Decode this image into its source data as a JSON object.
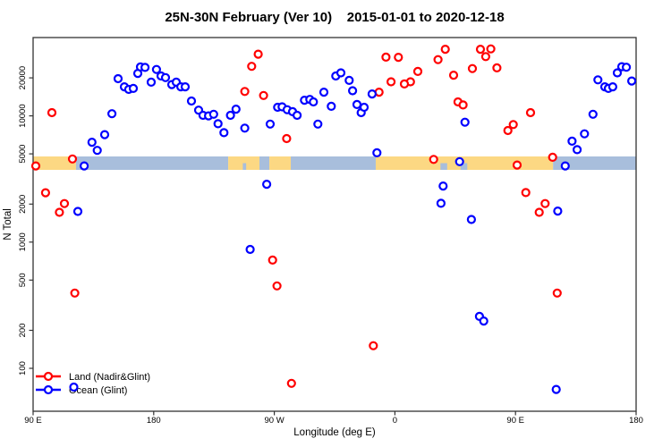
{
  "title": "25N-30N February (Ver 10)    2015-01-01 to 2020-12-18",
  "chart_data": {
    "type": "scatter",
    "title": "25N-30N February (Ver 10)    2015-01-01 to 2020-12-18",
    "xlabel": "Longitude (deg E)",
    "ylabel": "N Total",
    "x_axis": {
      "range": [
        90,
        540
      ],
      "note": "longitude wraps eastward: 90E -> 180 -> 90W -> 0 -> 90E -> 180",
      "ticks": [
        {
          "v": 90,
          "label": "90 E"
        },
        {
          "v": 180,
          "label": "180"
        },
        {
          "v": 270,
          "label": "90 W"
        },
        {
          "v": 360,
          "label": "0"
        },
        {
          "v": 450,
          "label": "90 E"
        },
        {
          "v": 540,
          "label": "180"
        }
      ]
    },
    "y_axis": {
      "scale": "log",
      "ticks": [
        100,
        200,
        500,
        1000,
        2000,
        5000,
        10000,
        20000
      ],
      "range": [
        46,
        41700
      ]
    },
    "series": [
      {
        "name": "Land (Nadir&Glint)",
        "color": "#ff0000",
        "points": [
          [
            104.0,
            10600
          ],
          [
            119.4,
            4560
          ],
          [
            92.0,
            4010
          ],
          [
            99.3,
            2460
          ],
          [
            113.4,
            2020
          ],
          [
            109.6,
            1720
          ],
          [
            121.1,
            395
          ],
          [
            258.0,
            30800
          ],
          [
            253.1,
            24700
          ],
          [
            248.0,
            15600
          ],
          [
            262.0,
            14500
          ],
          [
            279.2,
            6610
          ],
          [
            268.7,
            720
          ],
          [
            272.0,
            450
          ],
          [
            282.8,
            76
          ],
          [
            343.9,
            151
          ],
          [
            353.3,
            29200
          ],
          [
            362.6,
            29100
          ],
          [
            377.1,
            22500
          ],
          [
            371.6,
            18600
          ],
          [
            367.1,
            17900
          ],
          [
            357.1,
            18600
          ],
          [
            348.2,
            15400
          ],
          [
            397.6,
            33700
          ],
          [
            392.2,
            27900
          ],
          [
            403.8,
            21000
          ],
          [
            417.8,
            23700
          ],
          [
            423.8,
            33700
          ],
          [
            427.8,
            29500
          ],
          [
            431.6,
            33900
          ],
          [
            436.1,
            24000
          ],
          [
            407.1,
            12900
          ],
          [
            410.9,
            12200
          ],
          [
            444.3,
            7650
          ],
          [
            448.3,
            8540
          ],
          [
            388.9,
            4520
          ],
          [
            451.2,
            4080
          ],
          [
            461.2,
            10600
          ],
          [
            477.7,
            4700
          ],
          [
            457.7,
            2470
          ],
          [
            472.1,
            2020
          ],
          [
            467.7,
            1720
          ],
          [
            481.1,
            395
          ]
        ]
      },
      {
        "name": "Ocean (Glint)",
        "color": "#0000ff",
        "points": [
          [
            148.8,
            10400
          ],
          [
            153.4,
            19700
          ],
          [
            158.1,
            17000
          ],
          [
            161.4,
            16200
          ],
          [
            164.8,
            16500
          ],
          [
            168.1,
            21700
          ],
          [
            170.1,
            24400
          ],
          [
            173.5,
            24200
          ],
          [
            178.1,
            18500
          ],
          [
            182.1,
            23300
          ],
          [
            185.5,
            20700
          ],
          [
            188.8,
            20100
          ],
          [
            193.5,
            17700
          ],
          [
            196.8,
            18500
          ],
          [
            200.2,
            17000
          ],
          [
            203.5,
            17000
          ],
          [
            208.2,
            13100
          ],
          [
            213.5,
            11100
          ],
          [
            216.8,
            10100
          ],
          [
            220.9,
            10000
          ],
          [
            224.7,
            10300
          ],
          [
            228.0,
            8670
          ],
          [
            232.4,
            7360
          ],
          [
            237.3,
            10100
          ],
          [
            241.4,
            11300
          ],
          [
            248.0,
            8000
          ],
          [
            266.9,
            8600
          ],
          [
            272.5,
            11700
          ],
          [
            275.8,
            11800
          ],
          [
            279.6,
            11200
          ],
          [
            283.6,
            10800
          ],
          [
            287.0,
            10100
          ],
          [
            292.5,
            13300
          ],
          [
            296.5,
            13500
          ],
          [
            299.2,
            12900
          ],
          [
            302.5,
            8600
          ],
          [
            307.0,
            15400
          ],
          [
            312.5,
            11900
          ],
          [
            315.9,
            20700
          ],
          [
            319.7,
            21900
          ],
          [
            325.9,
            19100
          ],
          [
            328.4,
            15800
          ],
          [
            331.7,
            12300
          ],
          [
            334.8,
            10600
          ],
          [
            337.0,
            11700
          ],
          [
            343.0,
            14900
          ],
          [
            346.6,
            5100
          ],
          [
            394.4,
            2030
          ],
          [
            396.0,
            2780
          ],
          [
            408.3,
            4340
          ],
          [
            412.3,
            8900
          ],
          [
            417.1,
            1510
          ],
          [
            423.1,
            258
          ],
          [
            426.3,
            237
          ],
          [
            120.4,
            71
          ],
          [
            123.4,
            1750
          ],
          [
            128.1,
            4010
          ],
          [
            133.9,
            6180
          ],
          [
            137.9,
            5330
          ],
          [
            143.4,
            7100
          ],
          [
            252.0,
            875
          ],
          [
            264.3,
            2870
          ],
          [
            480.4,
            68
          ],
          [
            481.5,
            1760
          ],
          [
            487.1,
            4010
          ],
          [
            492.2,
            6300
          ],
          [
            496.0,
            5400
          ],
          [
            501.5,
            7200
          ],
          [
            507.8,
            10300
          ],
          [
            511.5,
            19300
          ],
          [
            516.6,
            17000
          ],
          [
            519.3,
            16500
          ],
          [
            522.6,
            17000
          ],
          [
            526.0,
            21900
          ],
          [
            529.3,
            24500
          ],
          [
            532.7,
            24300
          ],
          [
            536.7,
            18900
          ]
        ]
      }
    ],
    "map_band": {
      "description": "25N-30N latitude strip map drawn across the plot near N=4000-4800",
      "ocean_color": "#a8bedc",
      "land_color": "#fcd883",
      "segments": [
        {
          "from": 90,
          "to": 122,
          "type": "land"
        },
        {
          "from": 122,
          "to": 235.6,
          "type": "ocean"
        },
        {
          "from": 235.6,
          "to": 258.9,
          "type": "land"
        },
        {
          "from": 258.9,
          "to": 266.3,
          "type": "ocean"
        },
        {
          "from": 266.3,
          "to": 282.3,
          "type": "land"
        },
        {
          "from": 282.3,
          "to": 345.7,
          "type": "ocean"
        },
        {
          "from": 345.7,
          "to": 478,
          "type": "land"
        },
        {
          "from": 478,
          "to": 540,
          "type": "ocean"
        }
      ],
      "notches": [
        {
          "from": 246.5,
          "to": 249
        },
        {
          "from": 394,
          "to": 399
        },
        {
          "from": 409,
          "to": 414
        }
      ]
    },
    "legend": {
      "position": "bottom-left",
      "items": [
        {
          "label": "Land (Nadir&Glint)",
          "color": "#ff0000"
        },
        {
          "label": "Ocean (Glint)",
          "color": "#0000ff"
        }
      ]
    }
  }
}
